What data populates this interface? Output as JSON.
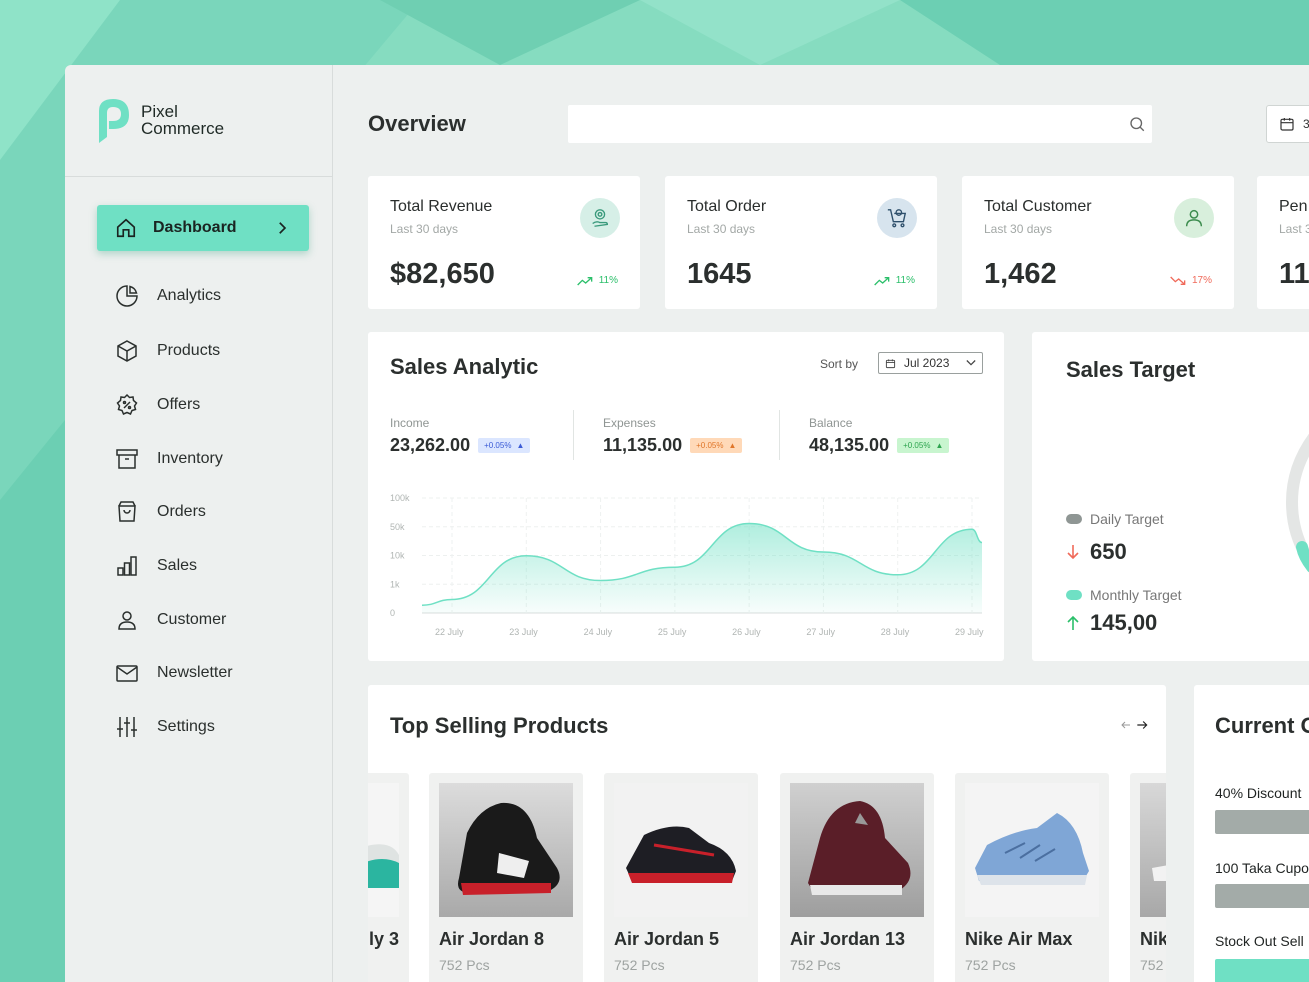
{
  "brand": {
    "name_line1": "Pixel",
    "name_line2": "Commerce"
  },
  "sidebar": {
    "active": {
      "label": "Dashboard"
    },
    "items": [
      {
        "label": "Analytics",
        "icon": "pie-chart-icon"
      },
      {
        "label": "Products",
        "icon": "box-icon"
      },
      {
        "label": "Offers",
        "icon": "discount-badge-icon"
      },
      {
        "label": "Inventory",
        "icon": "archive-icon"
      },
      {
        "label": "Orders",
        "icon": "shopping-bag-icon"
      },
      {
        "label": "Sales",
        "icon": "bar-chart-icon"
      },
      {
        "label": "Customer",
        "icon": "user-icon"
      },
      {
        "label": "Newsletter",
        "icon": "mail-icon"
      },
      {
        "label": "Settings",
        "icon": "sliders-icon"
      }
    ]
  },
  "header": {
    "title": "Overview",
    "search_placeholder": "",
    "date_label": "3"
  },
  "stats": [
    {
      "title": "Total Revenue",
      "sub": "Last 30 days",
      "value": "$82,650",
      "trend": "11%",
      "direction": "up"
    },
    {
      "title": "Total Order",
      "sub": "Last 30 days",
      "value": "1645",
      "trend": "11%",
      "direction": "up"
    },
    {
      "title": "Total Customer",
      "sub": "Last 30 days",
      "value": "1,462",
      "trend": "17%",
      "direction": "down"
    },
    {
      "title": "Pen",
      "sub": "Last 3",
      "value": "11"
    }
  ],
  "sales_analytic": {
    "title": "Sales Analytic",
    "sort_label": "Sort by",
    "sort_value": "Jul 2023",
    "metrics": [
      {
        "label": "Income",
        "value": "23,262.00",
        "badge": "+0.05%",
        "color": "#dbe6ff"
      },
      {
        "label": "Expenses",
        "value": "11,135.00",
        "badge": "+0.05%",
        "color": "#ffd9b8"
      },
      {
        "label": "Balance",
        "value": "48,135.00",
        "badge": "+0.05%",
        "color": "#c8f5cf"
      }
    ]
  },
  "chart_data": {
    "type": "area",
    "y_ticks": [
      "0",
      "1k",
      "10k",
      "50k",
      "100k"
    ],
    "x": [
      "22 July",
      "23 July",
      "24 July",
      "25 July",
      "26 July",
      "27 July",
      "28 July",
      "29 July"
    ],
    "series": [
      {
        "values": [
          5,
          28,
          15,
          22,
          45,
          30,
          18,
          42
        ]
      }
    ],
    "color": "#6fe0c4"
  },
  "sales_target": {
    "title": "Sales Target",
    "daily_label": "Daily Target",
    "daily_value": "650",
    "monthly_label": "Monthly Target",
    "monthly_value": "145,00"
  },
  "top_selling": {
    "title": "Top Selling Products",
    "products": [
      {
        "name": "ly 3",
        "qty": ""
      },
      {
        "name": "Air Jordan 8",
        "qty": "752 Pcs"
      },
      {
        "name": "Air Jordan 5",
        "qty": "752 Pcs"
      },
      {
        "name": "Air Jordan 13",
        "qty": "752 Pcs"
      },
      {
        "name": "Nike Air Max",
        "qty": "752 Pcs"
      },
      {
        "name": "Nik",
        "qty": "752"
      }
    ]
  },
  "current_offers": {
    "title": "Current O",
    "offers": [
      {
        "label": "40% Discount"
      },
      {
        "label": "100 Taka Cupo"
      },
      {
        "label": "Stock Out Sell"
      }
    ]
  }
}
